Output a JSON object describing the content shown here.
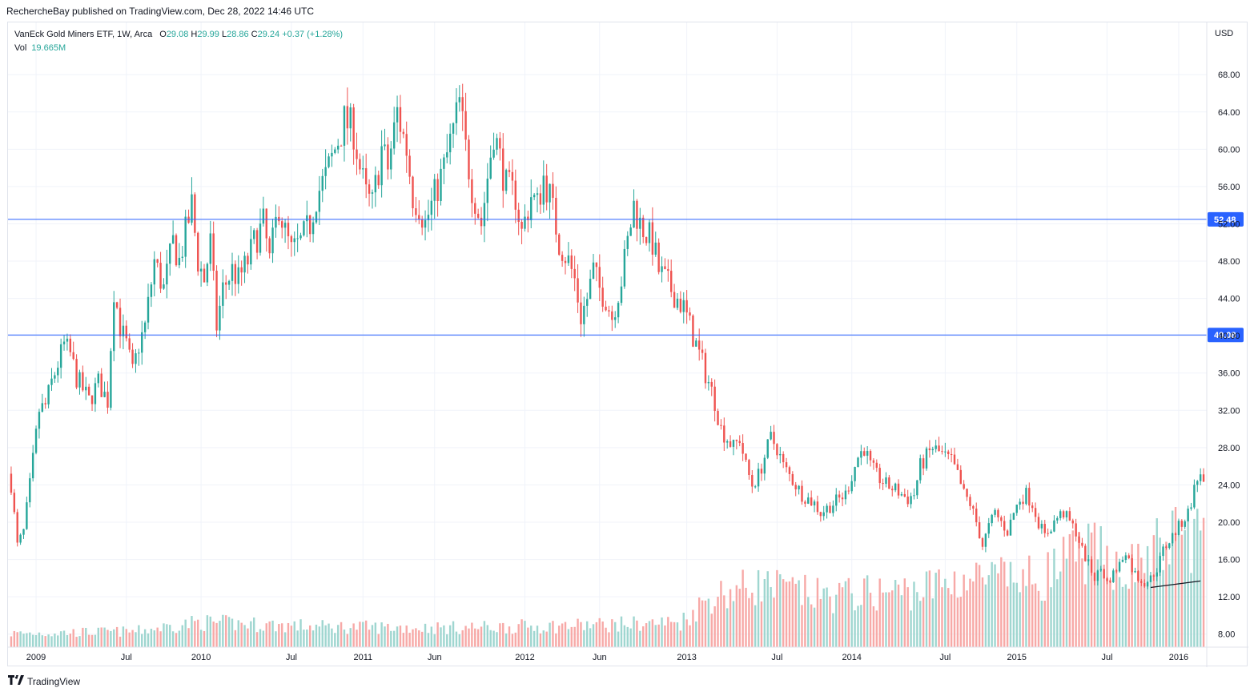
{
  "header": {
    "publisher_line": "RechercheBay published on TradingView.com, Dec 28, 2022 14:46 UTC"
  },
  "legend": {
    "symbol": "VanEck Gold Miners ETF, 1W, Arca",
    "o_label": "O",
    "o_value": "29.08",
    "h_label": "H",
    "h_value": "29.99",
    "l_label": "L",
    "l_value": "28.86",
    "c_label": "C",
    "c_value": "29.24",
    "change": "+0.37 (+1.28%)",
    "vol_label": "Vol",
    "vol_value": "19.665M"
  },
  "footer": {
    "logo_text": "TradingView"
  },
  "colors": {
    "up": "#26a69a",
    "down": "#ef5350",
    "up_vol": "#9fd6d0",
    "down_vol": "#f7a9a7",
    "hline": "#2962ff",
    "grid": "#f0f3fa"
  },
  "chart_data": {
    "type": "candlestick",
    "currency_label": "USD",
    "y_ticks": [
      "68.00",
      "64.00",
      "60.00",
      "56.00",
      "52.00",
      "48.00",
      "44.00",
      "40.00",
      "36.00",
      "32.00",
      "28.00",
      "24.00",
      "20.00",
      "16.00",
      "12.00",
      "8.00"
    ],
    "y_tick_values": [
      68,
      64,
      60,
      56,
      52,
      48,
      44,
      40,
      36,
      32,
      28,
      24,
      20,
      16,
      12,
      8
    ],
    "ylim": [
      6.6,
      73.6
    ],
    "x_ticks": [
      "2009",
      "Jul",
      "2010",
      "Jul",
      "2011",
      "Jun",
      "2012",
      "Jun",
      "2013",
      "Jul",
      "2014",
      "Jul",
      "2015",
      "Jul",
      "2016"
    ],
    "x_tick_weeks": [
      8,
      37,
      61,
      90,
      113,
      136,
      165,
      189,
      217,
      246,
      270,
      300,
      323,
      352,
      375
    ],
    "total_weeks": 384,
    "horizontal_lines": [
      {
        "value": 52.48,
        "label": "52.48"
      },
      {
        "value": 40.08,
        "label": "40.08"
      }
    ],
    "trendline": [
      {
        "week": 366,
        "value": 13.0
      },
      {
        "week": 382,
        "value": 13.7
      }
    ],
    "close_anchors": [
      [
        0,
        24
      ],
      [
        2,
        17.5
      ],
      [
        4,
        19
      ],
      [
        6,
        24
      ],
      [
        9,
        32
      ],
      [
        11,
        32.5
      ],
      [
        13,
        35
      ],
      [
        17,
        39
      ],
      [
        19,
        38
      ],
      [
        21,
        35.5
      ],
      [
        25,
        33
      ],
      [
        28,
        35
      ],
      [
        31,
        33
      ],
      [
        33,
        45
      ],
      [
        35,
        41
      ],
      [
        37,
        39
      ],
      [
        39,
        36
      ],
      [
        41,
        39
      ],
      [
        43,
        41
      ],
      [
        46,
        48
      ],
      [
        49,
        45
      ],
      [
        52,
        50
      ],
      [
        54,
        48
      ],
      [
        56,
        51
      ],
      [
        58,
        54
      ],
      [
        60,
        48
      ],
      [
        62,
        46
      ],
      [
        64,
        50
      ],
      [
        66,
        41
      ],
      [
        68,
        45
      ],
      [
        71,
        47
      ],
      [
        73,
        46
      ],
      [
        76,
        48
      ],
      [
        78,
        50
      ],
      [
        81,
        52
      ],
      [
        83,
        48
      ],
      [
        86,
        54
      ],
      [
        88,
        51
      ],
      [
        90,
        49
      ],
      [
        93,
        50
      ],
      [
        96,
        52
      ],
      [
        98,
        55
      ],
      [
        101,
        57
      ],
      [
        104,
        60
      ],
      [
        107,
        63
      ],
      [
        110,
        62
      ],
      [
        112,
        58
      ],
      [
        114,
        55
      ],
      [
        116,
        54
      ],
      [
        119,
        60
      ],
      [
        121,
        58
      ],
      [
        124,
        64
      ],
      [
        127,
        60
      ],
      [
        129,
        55
      ],
      [
        131,
        54
      ],
      [
        133,
        52
      ],
      [
        136,
        55
      ],
      [
        139,
        58
      ],
      [
        142,
        62
      ],
      [
        144,
        65
      ],
      [
        146,
        60
      ],
      [
        148,
        56
      ],
      [
        151,
        52
      ],
      [
        153,
        57
      ],
      [
        155,
        62
      ],
      [
        157,
        59
      ],
      [
        159,
        56
      ],
      [
        162,
        55
      ],
      [
        164,
        51
      ],
      [
        167,
        55
      ],
      [
        169,
        54
      ],
      [
        171,
        57
      ],
      [
        173,
        55
      ],
      [
        176,
        50
      ],
      [
        179,
        48
      ],
      [
        181,
        46
      ],
      [
        183,
        42
      ],
      [
        185,
        44
      ],
      [
        187,
        47
      ],
      [
        189,
        45
      ],
      [
        191,
        44
      ],
      [
        193,
        42
      ],
      [
        196,
        46
      ],
      [
        198,
        50
      ],
      [
        200,
        54
      ],
      [
        202,
        52
      ],
      [
        204,
        51
      ],
      [
        206,
        50
      ],
      [
        208,
        47
      ],
      [
        210,
        46
      ],
      [
        212,
        45
      ],
      [
        214,
        44
      ],
      [
        216,
        43
      ],
      [
        218,
        41
      ],
      [
        220,
        39
      ],
      [
        222,
        37
      ],
      [
        224,
        35
      ],
      [
        226,
        33
      ],
      [
        228,
        30
      ],
      [
        230,
        29
      ],
      [
        232,
        28
      ],
      [
        234,
        29
      ],
      [
        236,
        26
      ],
      [
        238,
        24
      ],
      [
        240,
        25
      ],
      [
        242,
        27
      ],
      [
        244,
        29
      ],
      [
        246,
        28
      ],
      [
        248,
        26
      ],
      [
        250,
        25
      ],
      [
        252,
        24
      ],
      [
        254,
        23
      ],
      [
        256,
        22.5
      ],
      [
        258,
        22
      ],
      [
        260,
        21
      ],
      [
        262,
        21.5
      ],
      [
        264,
        22
      ],
      [
        266,
        22.5
      ],
      [
        268,
        23
      ],
      [
        270,
        25
      ],
      [
        272,
        27
      ],
      [
        274,
        28
      ],
      [
        276,
        26
      ],
      [
        278,
        25
      ],
      [
        281,
        24
      ],
      [
        284,
        23.5
      ],
      [
        286,
        23
      ],
      [
        288,
        22.5
      ],
      [
        290,
        23
      ],
      [
        292,
        26
      ],
      [
        294,
        27
      ],
      [
        296,
        28
      ],
      [
        298,
        27.5
      ],
      [
        300,
        27
      ],
      [
        302,
        26.5
      ],
      [
        304,
        25
      ],
      [
        306,
        23
      ],
      [
        308,
        22
      ],
      [
        310,
        20
      ],
      [
        312,
        17.5
      ],
      [
        314,
        19.5
      ],
      [
        316,
        21
      ],
      [
        318,
        20
      ],
      [
        320,
        19
      ],
      [
        322,
        21
      ],
      [
        324,
        22.5
      ],
      [
        326,
        23
      ],
      [
        328,
        22
      ],
      [
        330,
        20
      ],
      [
        332,
        18.5
      ],
      [
        334,
        19.5
      ],
      [
        336,
        20.5
      ],
      [
        338,
        21
      ],
      [
        340,
        20
      ],
      [
        342,
        19
      ],
      [
        344,
        17
      ],
      [
        346,
        15.5
      ],
      [
        348,
        14
      ],
      [
        350,
        15
      ],
      [
        352,
        13.5
      ],
      [
        354,
        14.5
      ],
      [
        356,
        15.5
      ],
      [
        358,
        17
      ],
      [
        360,
        15
      ],
      [
        362,
        14
      ],
      [
        364,
        13.5
      ],
      [
        366,
        14
      ],
      [
        368,
        15
      ],
      [
        370,
        17
      ],
      [
        372,
        18
      ],
      [
        374,
        19
      ],
      [
        376,
        20
      ],
      [
        378,
        21
      ],
      [
        380,
        23.5
      ],
      [
        382,
        25.5
      ],
      [
        383,
        24
      ]
    ],
    "volume_anchors": [
      [
        0,
        0.12
      ],
      [
        40,
        0.14
      ],
      [
        60,
        0.22
      ],
      [
        100,
        0.18
      ],
      [
        140,
        0.17
      ],
      [
        180,
        0.19
      ],
      [
        215,
        0.22
      ],
      [
        225,
        0.45
      ],
      [
        240,
        0.55
      ],
      [
        260,
        0.45
      ],
      [
        290,
        0.5
      ],
      [
        305,
        0.6
      ],
      [
        330,
        0.6
      ],
      [
        345,
        0.85
      ],
      [
        360,
        0.7
      ],
      [
        375,
        1.0
      ],
      [
        383,
        1.0
      ]
    ],
    "series": [
      {
        "name": "Vol"
      }
    ]
  }
}
